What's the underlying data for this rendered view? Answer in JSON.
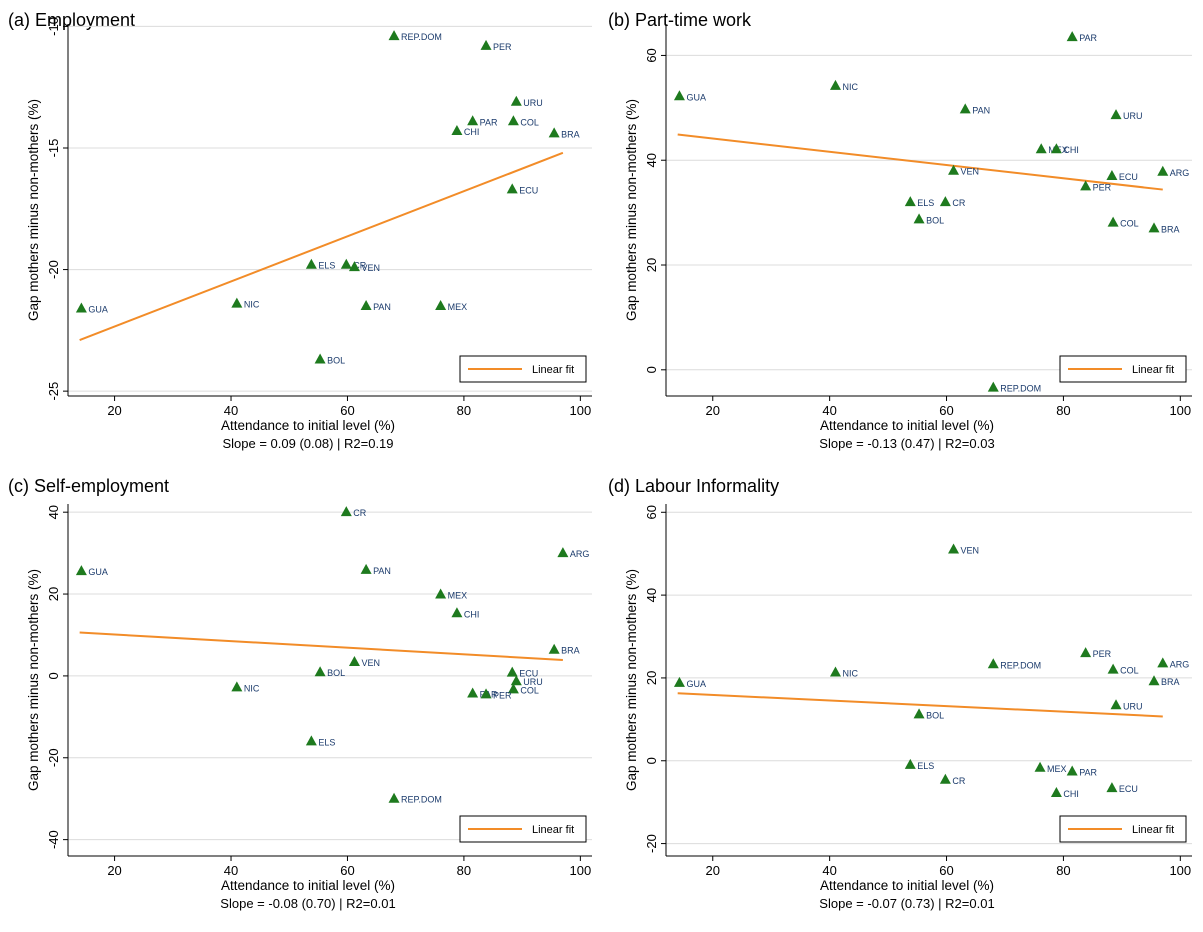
{
  "chart_data": [
    {
      "type": "scatter",
      "title": "(a) Employment",
      "xlabel": "Attendance to initial level (%)",
      "ylabel": "Gap mothers minus non-mothers (%)",
      "xlim": [
        12,
        102
      ],
      "ylim": [
        -25.2,
        -9.9
      ],
      "xticks": [
        20,
        40,
        60,
        80,
        100
      ],
      "yticks": [
        -10,
        -15,
        -20,
        -25
      ],
      "footer": "Slope = 0.09 (0.08) | R2=0.19",
      "legend": {
        "label": "Linear fit",
        "placement": "bottom-right"
      },
      "fit": {
        "x": [
          14,
          97
        ],
        "y": [
          -22.9,
          -15.2
        ]
      },
      "points": [
        {
          "label": "REP.DOM",
          "x": 68,
          "y": -10.4
        },
        {
          "label": "PER",
          "x": 83.8,
          "y": -10.8
        },
        {
          "label": "URU",
          "x": 89,
          "y": -13.1
        },
        {
          "label": "PAR",
          "x": 81.5,
          "y": -13.9
        },
        {
          "label": "COL",
          "x": 88.5,
          "y": -13.9
        },
        {
          "label": "CHI",
          "x": 78.8,
          "y": -14.3
        },
        {
          "label": "BRA",
          "x": 95.5,
          "y": -14.4
        },
        {
          "label": "ECU",
          "x": 88.3,
          "y": -16.7
        },
        {
          "label": "ELS",
          "x": 53.8,
          "y": -19.8
        },
        {
          "label": "CR",
          "x": 59.8,
          "y": -19.8
        },
        {
          "label": "VEN",
          "x": 61.2,
          "y": -19.9
        },
        {
          "label": "GUA",
          "x": 14.3,
          "y": -21.6
        },
        {
          "label": "NIC",
          "x": 41,
          "y": -21.4
        },
        {
          "label": "PAN",
          "x": 63.2,
          "y": -21.5
        },
        {
          "label": "MEX",
          "x": 76,
          "y": -21.5
        },
        {
          "label": "BOL",
          "x": 55.3,
          "y": -23.7
        }
      ]
    },
    {
      "type": "scatter",
      "title": "(b) Part-time work",
      "xlabel": "Attendance to initial level (%)",
      "ylabel": "Gap mothers minus non-mothers (%)",
      "xlim": [
        12,
        102
      ],
      "ylim": [
        -5,
        66
      ],
      "xticks": [
        20,
        40,
        60,
        80,
        100
      ],
      "yticks": [
        0,
        20,
        40,
        60
      ],
      "footer": "Slope = -0.13 (0.47) | R2=0.03",
      "legend": {
        "label": "Linear fit",
        "placement": "bottom-right"
      },
      "fit": {
        "x": [
          14,
          97
        ],
        "y": [
          44.9,
          34.4
        ]
      },
      "points": [
        {
          "label": "PAR",
          "x": 81.5,
          "y": 63.5
        },
        {
          "label": "NIC",
          "x": 41,
          "y": 54.2
        },
        {
          "label": "GUA",
          "x": 14.3,
          "y": 52.2
        },
        {
          "label": "PAN",
          "x": 63.2,
          "y": 49.7
        },
        {
          "label": "URU",
          "x": 89,
          "y": 48.6
        },
        {
          "label": "MEX",
          "x": 76.2,
          "y": 42.1
        },
        {
          "label": "CHI",
          "x": 78.8,
          "y": 42.1
        },
        {
          "label": "VEN",
          "x": 61.2,
          "y": 38
        },
        {
          "label": "ARG",
          "x": 97,
          "y": 37.8
        },
        {
          "label": "ECU",
          "x": 88.3,
          "y": 37
        },
        {
          "label": "PER",
          "x": 83.8,
          "y": 35
        },
        {
          "label": "ELS",
          "x": 53.8,
          "y": 32
        },
        {
          "label": "CR",
          "x": 59.8,
          "y": 32
        },
        {
          "label": "BOL",
          "x": 55.3,
          "y": 28.7
        },
        {
          "label": "COL",
          "x": 88.5,
          "y": 28.1
        },
        {
          "label": "BRA",
          "x": 95.5,
          "y": 27
        },
        {
          "label": "REP.DOM",
          "x": 68,
          "y": -3.4
        }
      ]
    },
    {
      "type": "scatter",
      "title": "(c) Self-employment",
      "xlabel": "Attendance to initial level (%)",
      "ylabel": "Gap mothers minus non-mothers (%)",
      "xlim": [
        12,
        102
      ],
      "ylim": [
        -44,
        42
      ],
      "xticks": [
        20,
        40,
        60,
        80,
        100
      ],
      "yticks": [
        -40,
        -20,
        0,
        20,
        40
      ],
      "footer": "Slope = -0.08 (0.70) | R2=0.01",
      "legend": {
        "label": "Linear fit",
        "placement": "bottom-right"
      },
      "fit": {
        "x": [
          14,
          97
        ],
        "y": [
          10.6,
          3.9
        ]
      },
      "points": [
        {
          "label": "CR",
          "x": 59.8,
          "y": 40
        },
        {
          "label": "ARG",
          "x": 97,
          "y": 30
        },
        {
          "label": "PAN",
          "x": 63.2,
          "y": 25.9
        },
        {
          "label": "GUA",
          "x": 14.3,
          "y": 25.6
        },
        {
          "label": "MEX",
          "x": 76,
          "y": 19.9
        },
        {
          "label": "CHI",
          "x": 78.8,
          "y": 15.3
        },
        {
          "label": "BRA",
          "x": 95.5,
          "y": 6.4
        },
        {
          "label": "VEN",
          "x": 61.2,
          "y": 3.4
        },
        {
          "label": "BOL",
          "x": 55.3,
          "y": 0.9
        },
        {
          "label": "ECU",
          "x": 88.3,
          "y": 0.8
        },
        {
          "label": "URU",
          "x": 89,
          "y": -1.3
        },
        {
          "label": "NIC",
          "x": 41,
          "y": -2.8
        },
        {
          "label": "COL",
          "x": 88.5,
          "y": -3.3
        },
        {
          "label": "PAR",
          "x": 81.5,
          "y": -4.3
        },
        {
          "label": "PER",
          "x": 83.8,
          "y": -4.5
        },
        {
          "label": "ELS",
          "x": 53.8,
          "y": -16
        },
        {
          "label": "REP.DOM",
          "x": 68,
          "y": -30
        }
      ]
    },
    {
      "type": "scatter",
      "title": "(d) Labour Informality",
      "xlabel": "Attendance to initial level (%)",
      "ylabel": "Gap mothers minus non-mothers (%)",
      "xlim": [
        12,
        102
      ],
      "ylim": [
        -23,
        62
      ],
      "xticks": [
        20,
        40,
        60,
        80,
        100
      ],
      "yticks": [
        -20,
        0,
        20,
        40,
        60
      ],
      "footer": "Slope = -0.07 (0.73) | R2=0.01",
      "legend": {
        "label": "Linear fit",
        "placement": "bottom-right"
      },
      "fit": {
        "x": [
          14,
          97
        ],
        "y": [
          16.3,
          10.7
        ]
      },
      "points": [
        {
          "label": "VEN",
          "x": 61.2,
          "y": 51
        },
        {
          "label": "PER",
          "x": 83.8,
          "y": 26
        },
        {
          "label": "ARG",
          "x": 97,
          "y": 23.5
        },
        {
          "label": "REP.DOM",
          "x": 68,
          "y": 23.3
        },
        {
          "label": "COL",
          "x": 88.5,
          "y": 22
        },
        {
          "label": "NIC",
          "x": 41,
          "y": 21.3
        },
        {
          "label": "BRA",
          "x": 95.5,
          "y": 19.2
        },
        {
          "label": "GUA",
          "x": 14.3,
          "y": 18.8
        },
        {
          "label": "URU",
          "x": 89,
          "y": 13.4
        },
        {
          "label": "BOL",
          "x": 55.3,
          "y": 11.2
        },
        {
          "label": "ELS",
          "x": 53.8,
          "y": -1
        },
        {
          "label": "MEX",
          "x": 76,
          "y": -1.7
        },
        {
          "label": "PAR",
          "x": 81.5,
          "y": -2.6
        },
        {
          "label": "CR",
          "x": 59.8,
          "y": -4.6
        },
        {
          "label": "ECU",
          "x": 88.3,
          "y": -6.6
        },
        {
          "label": "CHI",
          "x": 78.8,
          "y": -7.8
        }
      ]
    }
  ],
  "colors": {
    "marker": "#1e7a1e",
    "fit_line": "#f28c28",
    "grid": "#dcdcdc",
    "point_label": "#1a3a6b"
  }
}
